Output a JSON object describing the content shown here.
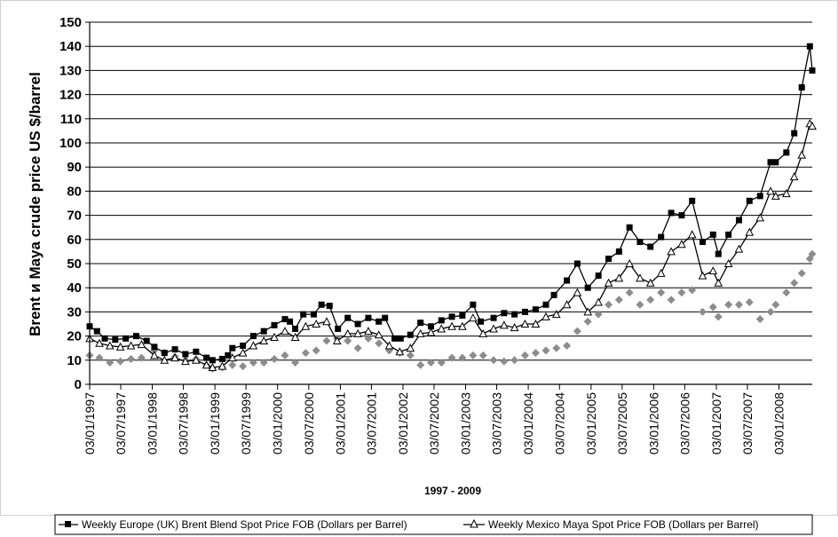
{
  "chart_data": {
    "type": "line",
    "xlabel": "1997 - 2009",
    "ylabel": "Brent и Maya crude price US $/barrel",
    "ylim": [
      0,
      150
    ],
    "yticks": [
      0,
      10,
      20,
      30,
      40,
      50,
      60,
      70,
      80,
      90,
      100,
      110,
      120,
      130,
      140,
      150
    ],
    "xlim": [
      "1997-01-03",
      "2008-07-15"
    ],
    "xticks": [
      "03/01/1997",
      "03/07/1997",
      "03/01/1998",
      "03/07/1998",
      "03/01/1999",
      "03/07/1999",
      "03/01/2000",
      "03/07/2000",
      "03/01/2001",
      "03/07/2001",
      "03/01/2002",
      "03/07/2002",
      "03/01/2003",
      "03/07/2003",
      "03/01/2004",
      "03/07/2004",
      "03/01/2005",
      "03/07/2005",
      "03/01/2006",
      "03/07/2006",
      "03/01/2007",
      "03/07/2007",
      "03/01/2008"
    ],
    "grid": true,
    "legend_position": "bottom",
    "series": [
      {
        "name": "Weekly Europe (UK) Brent Blend Spot Price FOB (Dollars per Barrel)",
        "color": "#000000",
        "marker": "square",
        "points": [
          [
            "1997-01-03",
            24
          ],
          [
            "1997-02-15",
            22
          ],
          [
            "1997-04-01",
            19
          ],
          [
            "1997-06-01",
            18.5
          ],
          [
            "1997-08-01",
            19
          ],
          [
            "1997-10-01",
            20
          ],
          [
            "1997-12-01",
            18
          ],
          [
            "1998-01-15",
            15.5
          ],
          [
            "1998-03-15",
            13
          ],
          [
            "1998-05-15",
            14.5
          ],
          [
            "1998-07-15",
            12.5
          ],
          [
            "1998-09-15",
            13.5
          ],
          [
            "1998-11-15",
            11
          ],
          [
            "1998-12-20",
            10
          ],
          [
            "1999-02-15",
            10.5
          ],
          [
            "1999-03-20",
            12
          ],
          [
            "1999-04-15",
            15
          ],
          [
            "1999-06-15",
            16
          ],
          [
            "1999-08-15",
            20
          ],
          [
            "1999-10-15",
            22
          ],
          [
            "1999-12-15",
            24.5
          ],
          [
            "2000-02-15",
            27
          ],
          [
            "2000-03-15",
            26
          ],
          [
            "2000-04-15",
            23
          ],
          [
            "2000-06-01",
            29
          ],
          [
            "2000-08-01",
            29
          ],
          [
            "2000-09-15",
            33
          ],
          [
            "2000-11-01",
            32.5
          ],
          [
            "2000-12-20",
            23
          ],
          [
            "2001-02-15",
            27.5
          ],
          [
            "2001-04-15",
            25
          ],
          [
            "2001-06-15",
            27.5
          ],
          [
            "2001-08-15",
            26
          ],
          [
            "2001-09-20",
            27.5
          ],
          [
            "2001-11-15",
            19
          ],
          [
            "2001-12-20",
            19
          ],
          [
            "2002-02-15",
            20.5
          ],
          [
            "2002-04-15",
            25.5
          ],
          [
            "2002-06-15",
            24
          ],
          [
            "2002-08-15",
            26.5
          ],
          [
            "2002-10-15",
            28
          ],
          [
            "2002-12-15",
            28.5
          ],
          [
            "2003-02-15",
            33
          ],
          [
            "2003-04-01",
            26
          ],
          [
            "2003-06-15",
            27.5
          ],
          [
            "2003-08-15",
            29.5
          ],
          [
            "2003-10-15",
            29
          ],
          [
            "2003-12-15",
            30
          ],
          [
            "2004-02-15",
            31
          ],
          [
            "2004-04-15",
            33
          ],
          [
            "2004-06-01",
            37
          ],
          [
            "2004-08-15",
            43
          ],
          [
            "2004-10-15",
            50
          ],
          [
            "2004-12-15",
            40
          ],
          [
            "2005-02-15",
            45
          ],
          [
            "2005-04-15",
            52
          ],
          [
            "2005-06-15",
            55
          ],
          [
            "2005-08-15",
            65
          ],
          [
            "2005-10-15",
            59
          ],
          [
            "2005-12-15",
            57
          ],
          [
            "2006-02-15",
            61
          ],
          [
            "2006-04-15",
            71
          ],
          [
            "2006-06-15",
            70
          ],
          [
            "2006-08-15",
            76
          ],
          [
            "2006-10-15",
            59
          ],
          [
            "2006-12-15",
            62
          ],
          [
            "2007-01-15",
            54
          ],
          [
            "2007-03-15",
            62
          ],
          [
            "2007-05-15",
            68
          ],
          [
            "2007-07-15",
            76
          ],
          [
            "2007-09-15",
            78
          ],
          [
            "2007-11-15",
            92
          ],
          [
            "2007-12-15",
            92
          ],
          [
            "2008-02-15",
            96
          ],
          [
            "2008-04-01",
            104
          ],
          [
            "2008-05-15",
            123
          ],
          [
            "2008-07-01",
            140
          ],
          [
            "2008-07-15",
            130
          ]
        ]
      },
      {
        "name": "Weekly Mexico Maya Spot Price FOB (Dollars per Barrel)",
        "color": "#000000",
        "marker": "triangle-open",
        "points": [
          [
            "1997-01-03",
            19
          ],
          [
            "1997-03-01",
            17
          ],
          [
            "1997-05-01",
            16
          ],
          [
            "1997-07-01",
            15.5
          ],
          [
            "1997-09-01",
            16
          ],
          [
            "1997-11-01",
            16.5
          ],
          [
            "1998-01-15",
            12
          ],
          [
            "1998-03-15",
            10
          ],
          [
            "1998-05-15",
            11
          ],
          [
            "1998-07-15",
            9.5
          ],
          [
            "1998-09-15",
            10
          ],
          [
            "1998-11-15",
            8
          ],
          [
            "1998-12-20",
            7
          ],
          [
            "1999-02-15",
            7.5
          ],
          [
            "1999-04-15",
            11
          ],
          [
            "1999-06-15",
            13
          ],
          [
            "1999-08-15",
            16
          ],
          [
            "1999-10-15",
            18
          ],
          [
            "1999-12-15",
            19.5
          ],
          [
            "2000-02-15",
            22
          ],
          [
            "2000-04-15",
            19.5
          ],
          [
            "2000-06-15",
            24
          ],
          [
            "2000-08-15",
            25
          ],
          [
            "2000-10-15",
            26
          ],
          [
            "2000-12-15",
            18
          ],
          [
            "2001-02-15",
            21
          ],
          [
            "2001-04-15",
            21
          ],
          [
            "2001-06-15",
            22
          ],
          [
            "2001-08-15",
            20.5
          ],
          [
            "2001-10-15",
            16
          ],
          [
            "2001-12-15",
            13.5
          ],
          [
            "2002-02-15",
            15
          ],
          [
            "2002-04-15",
            21
          ],
          [
            "2002-06-15",
            21.5
          ],
          [
            "2002-08-15",
            23
          ],
          [
            "2002-10-15",
            24
          ],
          [
            "2002-12-15",
            24
          ],
          [
            "2003-02-15",
            27.5
          ],
          [
            "2003-04-15",
            21
          ],
          [
            "2003-06-15",
            23
          ],
          [
            "2003-08-15",
            24.5
          ],
          [
            "2003-10-15",
            23.5
          ],
          [
            "2003-12-15",
            25
          ],
          [
            "2004-02-15",
            25
          ],
          [
            "2004-04-15",
            28
          ],
          [
            "2004-06-15",
            29
          ],
          [
            "2004-08-15",
            33
          ],
          [
            "2004-10-15",
            38
          ],
          [
            "2004-12-15",
            30
          ],
          [
            "2005-02-15",
            34
          ],
          [
            "2005-04-15",
            42
          ],
          [
            "2005-06-15",
            44
          ],
          [
            "2005-08-15",
            50
          ],
          [
            "2005-10-15",
            44
          ],
          [
            "2005-12-15",
            42
          ],
          [
            "2006-02-15",
            46
          ],
          [
            "2006-04-15",
            55
          ],
          [
            "2006-06-15",
            58
          ],
          [
            "2006-08-15",
            62
          ],
          [
            "2006-10-15",
            45
          ],
          [
            "2006-12-15",
            47
          ],
          [
            "2007-01-15",
            42
          ],
          [
            "2007-03-15",
            50
          ],
          [
            "2007-05-15",
            56
          ],
          [
            "2007-07-15",
            63
          ],
          [
            "2007-09-15",
            69
          ],
          [
            "2007-11-15",
            80
          ],
          [
            "2007-12-15",
            78
          ],
          [
            "2008-02-15",
            79
          ],
          [
            "2008-04-01",
            86
          ],
          [
            "2008-05-15",
            95
          ],
          [
            "2008-07-01",
            108
          ],
          [
            "2008-07-15",
            107
          ]
        ]
      },
      {
        "name": "",
        "color": "#8c8c8c",
        "marker": "diamond",
        "points": [
          [
            "1997-01-03",
            12
          ],
          [
            "1997-03-01",
            11
          ],
          [
            "1997-05-01",
            9
          ],
          [
            "1997-07-01",
            9.5
          ],
          [
            "1997-09-01",
            10.5
          ],
          [
            "1997-11-01",
            11
          ],
          [
            "1998-01-15",
            14
          ],
          [
            "1998-03-15",
            13
          ],
          [
            "1998-05-15",
            11.5
          ],
          [
            "1998-07-15",
            10
          ],
          [
            "1998-09-15",
            10.5
          ],
          [
            "1998-11-15",
            8
          ],
          [
            "1998-12-20",
            6.5
          ],
          [
            "1999-02-15",
            7
          ],
          [
            "1999-04-15",
            8
          ],
          [
            "1999-06-15",
            7.5
          ],
          [
            "1999-08-15",
            9
          ],
          [
            "1999-10-15",
            9
          ],
          [
            "1999-12-15",
            10.5
          ],
          [
            "2000-02-15",
            12
          ],
          [
            "2000-04-15",
            9
          ],
          [
            "2000-06-15",
            13
          ],
          [
            "2000-08-15",
            14
          ],
          [
            "2000-10-15",
            18
          ],
          [
            "2000-12-15",
            19
          ],
          [
            "2001-02-15",
            18
          ],
          [
            "2001-04-15",
            15
          ],
          [
            "2001-06-15",
            19
          ],
          [
            "2001-08-15",
            17
          ],
          [
            "2001-10-15",
            14
          ],
          [
            "2001-12-15",
            13
          ],
          [
            "2002-02-15",
            12
          ],
          [
            "2002-04-15",
            8
          ],
          [
            "2002-06-15",
            9
          ],
          [
            "2002-08-15",
            9
          ],
          [
            "2002-10-15",
            11
          ],
          [
            "2002-12-15",
            11
          ],
          [
            "2003-02-15",
            12
          ],
          [
            "2003-04-15",
            12
          ],
          [
            "2003-06-15",
            10
          ],
          [
            "2003-08-15",
            9.5
          ],
          [
            "2003-10-15",
            10
          ],
          [
            "2003-12-15",
            12
          ],
          [
            "2004-02-15",
            13
          ],
          [
            "2004-04-15",
            14
          ],
          [
            "2004-06-15",
            15
          ],
          [
            "2004-08-15",
            16
          ],
          [
            "2004-10-15",
            22
          ],
          [
            "2004-12-15",
            26
          ],
          [
            "2005-02-15",
            29
          ],
          [
            "2005-04-15",
            33
          ],
          [
            "2005-06-15",
            35
          ],
          [
            "2005-08-15",
            38
          ],
          [
            "2005-10-15",
            33
          ],
          [
            "2005-12-15",
            35
          ],
          [
            "2006-02-15",
            38
          ],
          [
            "2006-04-15",
            35
          ],
          [
            "2006-06-15",
            38
          ],
          [
            "2006-08-15",
            39
          ],
          [
            "2006-10-15",
            30
          ],
          [
            "2006-12-15",
            32
          ],
          [
            "2007-01-15",
            28
          ],
          [
            "2007-03-15",
            33
          ],
          [
            "2007-05-15",
            33
          ],
          [
            "2007-07-15",
            34
          ],
          [
            "2007-09-15",
            27
          ],
          [
            "2007-11-15",
            30
          ],
          [
            "2007-12-15",
            33
          ],
          [
            "2008-02-15",
            38
          ],
          [
            "2008-04-01",
            42
          ],
          [
            "2008-05-15",
            46
          ],
          [
            "2008-07-01",
            52
          ],
          [
            "2008-07-15",
            54
          ]
        ]
      }
    ]
  },
  "legend": {
    "entries": [
      "Weekly Europe (UK) Brent Blend Spot Price FOB (Dollars per Barrel)",
      "Weekly Mexico Maya Spot Price FOB  (Dollars per Barrel)"
    ]
  }
}
